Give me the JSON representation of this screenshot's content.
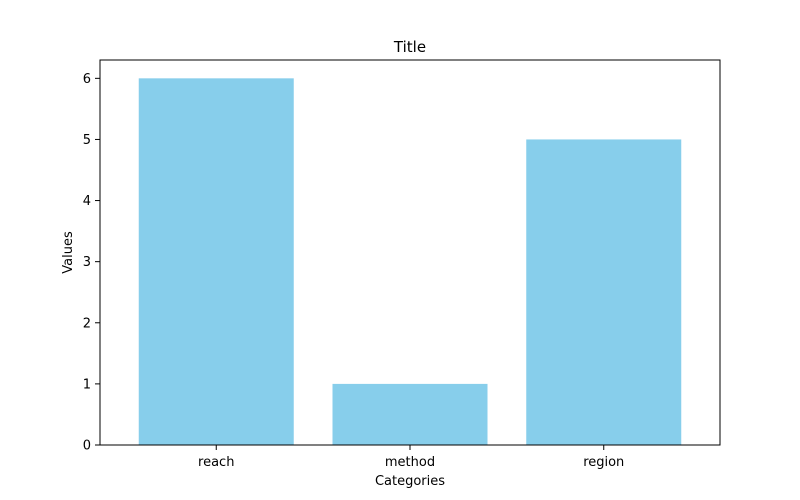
{
  "chart_data": {
    "type": "bar",
    "title": "Title",
    "xlabel": "Categories",
    "ylabel": "Values",
    "categories": [
      "reach",
      "method",
      "region"
    ],
    "values": [
      6,
      1,
      5
    ],
    "ylim": [
      0,
      6.3
    ],
    "yticks": [
      0,
      1,
      2,
      3,
      4,
      5,
      6
    ],
    "bar_color": "#87ceeb",
    "grid": false,
    "legend": "none"
  }
}
